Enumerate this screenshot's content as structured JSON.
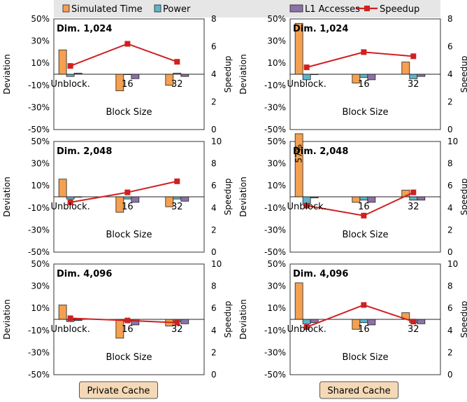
{
  "legend": {
    "items": [
      {
        "label": "Simulated Time",
        "color": "#f4a050",
        "kind": "bar"
      },
      {
        "label": "Power",
        "color": "#5fb4c8",
        "kind": "bar"
      },
      {
        "label": "L1 Accesses",
        "color": "#8c72a8",
        "kind": "bar"
      },
      {
        "label": "Speedup",
        "color": "#d02020",
        "kind": "line"
      }
    ]
  },
  "columns": [
    {
      "label": "Private Cache"
    },
    {
      "label": "Shared Cache"
    }
  ],
  "axis_text": {
    "ylabel_left": "Deviation",
    "ylabel_right": "Speedup",
    "xlabel": "Block Size"
  },
  "colors": {
    "simulated_time": "#f4a050",
    "power": "#5fb4c8",
    "l1": "#8c72a8",
    "speedup": "#d02020",
    "button_bg": "#f5d9b6"
  },
  "chart_data": [
    {
      "type": "bar",
      "id": "p1",
      "title": "Dim. 1,024",
      "categories": [
        "Unblock.",
        "16",
        "32"
      ],
      "ylim": [
        -50,
        50
      ],
      "yticks": [
        "50%",
        "30%",
        "10%",
        "-10%",
        "-30%",
        "-50%"
      ],
      "ytick_values": [
        50,
        30,
        10,
        -10,
        -30,
        -50
      ],
      "y2lim": [
        0,
        8
      ],
      "y2ticks": [
        "8",
        "6",
        "4",
        "2",
        "0"
      ],
      "y2tick_values": [
        8,
        6,
        4,
        2,
        0
      ],
      "series": [
        {
          "name": "Simulated Time",
          "values": [
            22,
            -15,
            -10
          ]
        },
        {
          "name": "Power",
          "values": [
            -2,
            0,
            1
          ]
        },
        {
          "name": "L1 Accesses",
          "values": [
            1,
            -4,
            -2
          ]
        }
      ],
      "line": {
        "name": "Speedup",
        "values": [
          4.6,
          6.2,
          4.9
        ]
      },
      "bar_labels": []
    },
    {
      "type": "bar",
      "id": "s1",
      "title": "Dim. 1,024",
      "categories": [
        "Unblock.",
        "16",
        "32"
      ],
      "ylim": [
        -50,
        50
      ],
      "yticks": [
        "50%",
        "30%",
        "10%",
        "-10%",
        "-30%",
        "-50%"
      ],
      "ytick_values": [
        50,
        30,
        10,
        -10,
        -30,
        -50
      ],
      "y2lim": [
        0,
        8
      ],
      "y2ticks": [
        "8",
        "6",
        "4",
        "2",
        "0"
      ],
      "y2tick_values": [
        8,
        6,
        4,
        2,
        0
      ],
      "series": [
        {
          "name": "Simulated Time",
          "values": [
            46,
            -8,
            11
          ]
        },
        {
          "name": "Power",
          "values": [
            -5,
            -3,
            -4
          ]
        },
        {
          "name": "L1 Accesses",
          "values": [
            0,
            -5,
            -2
          ]
        }
      ],
      "line": {
        "name": "Speedup",
        "values": [
          4.5,
          5.6,
          5.3
        ]
      },
      "bar_labels": []
    },
    {
      "type": "bar",
      "id": "p2",
      "title": "Dim. 2,048",
      "categories": [
        "Unblock.",
        "16",
        "32"
      ],
      "ylim": [
        -50,
        50
      ],
      "yticks": [
        "50%",
        "30%",
        "10%",
        "-10%",
        "-30%",
        "-50%"
      ],
      "ytick_values": [
        50,
        30,
        10,
        -10,
        -30,
        -50
      ],
      "y2lim": [
        0,
        10
      ],
      "y2ticks": [
        "10",
        "8",
        "6",
        "4",
        "2",
        "0"
      ],
      "y2tick_values": [
        10,
        8,
        6,
        4,
        2,
        0
      ],
      "series": [
        {
          "name": "Simulated Time",
          "values": [
            16,
            -14,
            -9
          ]
        },
        {
          "name": "Power",
          "values": [
            -2,
            -2,
            -2
          ]
        },
        {
          "name": "L1 Accesses",
          "values": [
            0,
            -5,
            -4
          ]
        }
      ],
      "line": {
        "name": "Speedup",
        "values": [
          4.5,
          5.4,
          6.4
        ]
      },
      "bar_labels": []
    },
    {
      "type": "bar",
      "id": "s2",
      "title": "Dim. 2,048",
      "categories": [
        "Unblock.",
        "16",
        "32"
      ],
      "ylim": [
        -50,
        50
      ],
      "yticks": [
        "50%",
        "30%",
        "10%",
        "-10%",
        "-30%",
        "-50%"
      ],
      "ytick_values": [
        50,
        30,
        10,
        -10,
        -30,
        -50
      ],
      "y2lim": [
        0,
        10
      ],
      "y2ticks": [
        "10",
        "8",
        "6",
        "4",
        "2",
        "0"
      ],
      "y2tick_values": [
        10,
        8,
        6,
        4,
        2,
        0
      ],
      "series": [
        {
          "name": "Simulated Time",
          "values": [
            57,
            -5,
            6
          ]
        },
        {
          "name": "Power",
          "values": [
            -6,
            -3,
            -3
          ]
        },
        {
          "name": "L1 Accesses",
          "values": [
            -1,
            -5,
            -3
          ]
        }
      ],
      "line": {
        "name": "Speedup",
        "values": [
          4.2,
          3.3,
          5.4
        ]
      },
      "bar_labels": [
        {
          "text": "57%",
          "category": 0
        }
      ]
    },
    {
      "type": "bar",
      "id": "p3",
      "title": "Dim. 4,096",
      "categories": [
        "Unblock.",
        "16",
        "32"
      ],
      "ylim": [
        -50,
        50
      ],
      "yticks": [
        "50%",
        "30%",
        "10%",
        "-10%",
        "-30%",
        "-50%"
      ],
      "ytick_values": [
        50,
        30,
        10,
        -10,
        -30,
        -50
      ],
      "y2lim": [
        0,
        10
      ],
      "y2ticks": [
        "10",
        "8",
        "6",
        "4",
        "2",
        "0"
      ],
      "y2tick_values": [
        10,
        8,
        6,
        4,
        2,
        0
      ],
      "series": [
        {
          "name": "Simulated Time",
          "values": [
            13,
            -17,
            -6
          ]
        },
        {
          "name": "Power",
          "values": [
            -2,
            -2,
            -2
          ]
        },
        {
          "name": "L1 Accesses",
          "values": [
            -1,
            -5,
            -4
          ]
        }
      ],
      "line": {
        "name": "Speedup",
        "values": [
          5.1,
          4.9,
          4.7
        ]
      },
      "bar_labels": []
    },
    {
      "type": "bar",
      "id": "s3",
      "title": "Dim. 4,096",
      "categories": [
        "Unblock.",
        "16",
        "32"
      ],
      "ylim": [
        -50,
        50
      ],
      "yticks": [
        "50%",
        "30%",
        "10%",
        "-10%",
        "-30%",
        "-50%"
      ],
      "ytick_values": [
        50,
        30,
        10,
        -10,
        -30,
        -50
      ],
      "y2lim": [
        0,
        10
      ],
      "y2ticks": [
        "10",
        "8",
        "6",
        "4",
        "2",
        "0"
      ],
      "y2tick_values": [
        10,
        8,
        6,
        4,
        2,
        0
      ],
      "series": [
        {
          "name": "Simulated Time",
          "values": [
            33,
            -9,
            6
          ]
        },
        {
          "name": "Power",
          "values": [
            -4,
            -3,
            -3
          ]
        },
        {
          "name": "L1 Accesses",
          "values": [
            -3,
            -5,
            -4
          ]
        }
      ],
      "line": {
        "name": "Speedup",
        "values": [
          4.3,
          6.3,
          4.8
        ]
      },
      "bar_labels": []
    }
  ]
}
